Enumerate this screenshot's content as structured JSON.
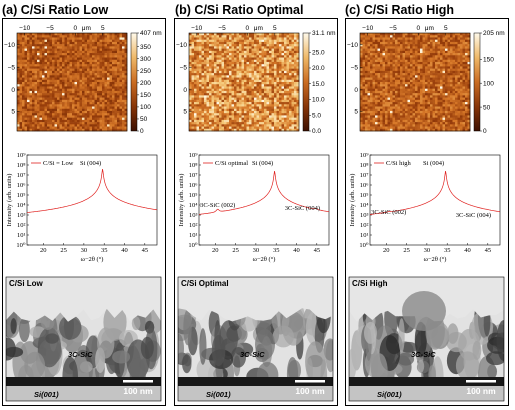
{
  "panels": [
    {
      "title": "(a) C/Si Ratio Low",
      "afm": {
        "x_ticks": [
          "−10",
          "−5",
          "0",
          "μm",
          "5"
        ],
        "y_ticks": [
          "−10",
          "−5",
          "0",
          "5"
        ],
        "colorbar_ticks": [
          "407 nm",
          "350",
          "300",
          "250",
          "200",
          "150",
          "100",
          "50",
          "0"
        ],
        "colorbar_values": [
          407,
          350,
          300,
          250,
          200,
          150,
          100,
          50,
          0
        ],
        "colorbar_max": 407,
        "texture_level": 0.42
      },
      "xrd": {
        "legend": "C/Si = Low",
        "peak_labels": [
          {
            "text": "Si (004)",
            "x": 34.6
          }
        ],
        "peaks": [
          {
            "x": 34.6,
            "y": 7.6
          }
        ]
      },
      "tem": {
        "title": "C/Si Low",
        "film_label": "3C-SiC",
        "substrate_label": "Si(001)",
        "scale_label": "100 nm"
      }
    },
    {
      "title": "(b) C/Si Ratio Optimal",
      "afm": {
        "x_ticks": [
          "−10",
          "−5",
          "0",
          "μm",
          "5"
        ],
        "y_ticks": [
          "−10",
          "−5",
          "0",
          "5"
        ],
        "colorbar_ticks": [
          "31.1 nm",
          "25.0",
          "20.0",
          "15.0",
          "10.0",
          "5.0",
          "0.0"
        ],
        "colorbar_values": [
          31.1,
          25.0,
          20.0,
          15.0,
          10.0,
          5.0,
          0.0
        ],
        "colorbar_max": 31.1,
        "texture_level": 0.62
      },
      "xrd": {
        "legend": "C/Si optimal",
        "peak_labels": [
          {
            "text": "Si (004)",
            "x": 34.6
          },
          {
            "text": "3C-SiC (002)",
            "x": 20.6
          },
          {
            "text": "3C-SiC (004)",
            "x": 44.8
          }
        ],
        "peaks": [
          {
            "x": 20.6,
            "y": 3.3
          },
          {
            "x": 34.6,
            "y": 7.4
          },
          {
            "x": 44.8,
            "y": 3.0
          }
        ]
      },
      "tem": {
        "title": "C/Si Optimal",
        "film_label": "3C-SiC",
        "substrate_label": "Si(001)",
        "scale_label": "100 nm"
      }
    },
    {
      "title": "(c) C/Si Ratio High",
      "afm": {
        "x_ticks": [
          "−10",
          "−5",
          "0",
          "μm",
          "5"
        ],
        "y_ticks": [
          "−10",
          "−5",
          "0",
          "5"
        ],
        "colorbar_ticks": [
          "205 nm",
          "150",
          "100",
          "50",
          "0"
        ],
        "colorbar_values": [
          205,
          150,
          100,
          50,
          0
        ],
        "colorbar_max": 205,
        "texture_level": 0.45
      },
      "xrd": {
        "legend": "C/Si high",
        "peak_labels": [
          {
            "text": "Si (004)",
            "x": 34.6
          },
          {
            "text": "3C-SiC (002)",
            "x": 20.6
          },
          {
            "text": "3C-SiC (004)",
            "x": 44.8
          }
        ],
        "peaks": [
          {
            "x": 20.6,
            "y": 2.6
          },
          {
            "x": 34.6,
            "y": 7.4
          },
          {
            "x": 44.8,
            "y": 2.3
          }
        ]
      },
      "tem": {
        "title": "C/Si High",
        "film_label": "3C-SiC",
        "substrate_label": "Si(001)",
        "scale_label": "100 nm"
      }
    }
  ],
  "xrd_axes": {
    "xlabel": "ω−2θ (°)",
    "ylabel": "Intensity (arb. units)",
    "x_ticks": [
      "20",
      "25",
      "30",
      "35",
      "40",
      "45"
    ],
    "x_tick_values": [
      20,
      25,
      30,
      35,
      40,
      45
    ],
    "xlim": [
      16,
      48
    ],
    "y_ticks": [
      "10⁰",
      "10¹",
      "10²",
      "10³",
      "10⁴",
      "10⁵",
      "10⁶",
      "10⁷",
      "10⁸",
      "10⁹"
    ],
    "ylim_exp": [
      0,
      9
    ],
    "baseline_exp": 2.0,
    "line_color": "#e0201e"
  },
  "chart_data": [
    {
      "type": "line",
      "panel": "a",
      "title": "",
      "xlabel": "ω−2θ (°)",
      "ylabel": "Intensity (arb. units)",
      "xlim": [
        16,
        48
      ],
      "ylim": [
        "10⁰",
        "10⁹"
      ],
      "log_y": true,
      "series": [
        {
          "name": "C/Si = Low",
          "x": [
            16,
            30,
            34.6,
            40,
            48
          ],
          "y_log10": [
            2.0,
            2.0,
            7.6,
            2.0,
            2.0
          ]
        }
      ]
    },
    {
      "type": "line",
      "panel": "b",
      "title": "",
      "xlabel": "ω−2θ (°)",
      "ylabel": "Intensity (arb. units)",
      "xlim": [
        16,
        48
      ],
      "ylim": [
        "10⁰",
        "10⁹"
      ],
      "log_y": true,
      "series": [
        {
          "name": "C/Si optimal",
          "x": [
            16,
            20.6,
            34.6,
            44.8,
            48
          ],
          "y_log10": [
            2.0,
            3.3,
            7.4,
            3.0,
            2.0
          ]
        }
      ]
    },
    {
      "type": "line",
      "panel": "c",
      "title": "",
      "xlabel": "ω−2θ (°)",
      "ylabel": "Intensity (arb. units)",
      "xlim": [
        16,
        48
      ],
      "ylim": [
        "10⁰",
        "10⁹"
      ],
      "log_y": true,
      "series": [
        {
          "name": "C/Si high",
          "x": [
            16,
            20.6,
            34.6,
            44.8,
            48
          ],
          "y_log10": [
            2.0,
            2.6,
            7.4,
            2.3,
            2.0
          ]
        }
      ]
    }
  ]
}
